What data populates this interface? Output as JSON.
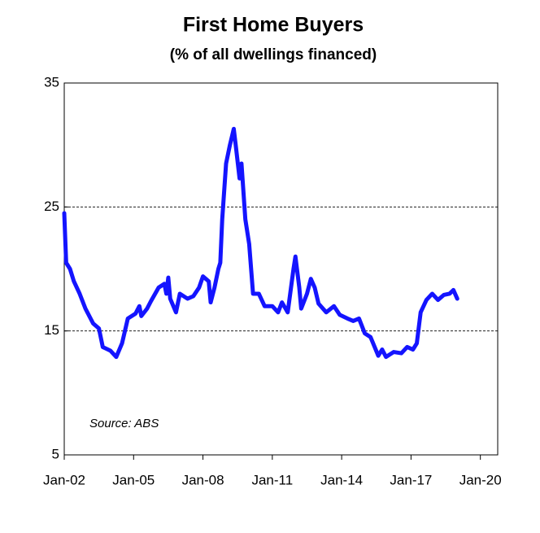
{
  "chart_data": {
    "type": "line",
    "title": "First Home Buyers",
    "subtitle": "(% of all dwellings financed)",
    "annotation": "Source: ABS",
    "xlim": [
      "2002-01",
      "2020-10"
    ],
    "xticks": [
      {
        "value": "2002-01",
        "label": "Jan-02"
      },
      {
        "value": "2005-01",
        "label": "Jan-05"
      },
      {
        "value": "2008-01",
        "label": "Jan-08"
      },
      {
        "value": "2011-01",
        "label": "Jan-11"
      },
      {
        "value": "2014-01",
        "label": "Jan-14"
      },
      {
        "value": "2017-01",
        "label": "Jan-17"
      },
      {
        "value": "2020-01",
        "label": "Jan-20"
      }
    ],
    "ylim": [
      5,
      35
    ],
    "yticks": [
      5,
      15,
      25,
      35
    ],
    "grid": true,
    "series": [
      {
        "name": "First Home Buyers",
        "color": "#1414ff",
        "x": [
          "2002-01",
          "2002-02",
          "2002-04",
          "2002-06",
          "2002-09",
          "2002-12",
          "2003-04",
          "2003-07",
          "2003-09",
          "2004-01",
          "2004-04",
          "2004-07",
          "2004-10",
          "2005-02",
          "2005-04",
          "2005-05",
          "2005-08",
          "2005-10",
          "2006-02",
          "2006-05",
          "2006-06",
          "2006-07",
          "2006-08",
          "2006-11",
          "2007-01",
          "2007-05",
          "2007-08",
          "2007-11",
          "2008-01",
          "2008-04",
          "2008-05",
          "2008-07",
          "2008-09",
          "2008-10",
          "2008-11",
          "2009-01",
          "2009-03",
          "2009-05",
          "2009-06",
          "2009-08",
          "2009-09",
          "2009-11",
          "2010-01",
          "2010-03",
          "2010-06",
          "2010-09",
          "2011-01",
          "2011-04",
          "2011-06",
          "2011-09",
          "2011-12",
          "2012-01",
          "2012-03",
          "2012-04",
          "2012-07",
          "2012-09",
          "2012-11",
          "2013-01",
          "2013-05",
          "2013-09",
          "2013-12",
          "2014-04",
          "2014-07",
          "2014-10",
          "2015-01",
          "2015-04",
          "2015-08",
          "2015-10",
          "2015-12",
          "2016-04",
          "2016-08",
          "2016-11",
          "2017-02",
          "2017-04",
          "2017-06",
          "2017-09",
          "2017-12",
          "2018-03",
          "2018-06",
          "2018-09",
          "2018-11",
          "2019-01"
        ],
        "values": [
          24.5,
          20.5,
          20.0,
          19.0,
          18.0,
          16.8,
          15.6,
          15.2,
          13.7,
          13.4,
          12.9,
          14.0,
          16.0,
          16.4,
          17.0,
          16.2,
          16.8,
          17.4,
          18.5,
          18.8,
          18.0,
          19.3,
          17.6,
          16.5,
          18.0,
          17.6,
          17.8,
          18.5,
          19.4,
          19.0,
          17.3,
          18.5,
          20.0,
          20.5,
          24.0,
          28.5,
          30.0,
          31.3,
          30.0,
          27.3,
          28.5,
          24.0,
          22.0,
          18.0,
          18.0,
          17.0,
          17.0,
          16.5,
          17.3,
          16.5,
          20.0,
          21.0,
          18.5,
          16.8,
          18.0,
          19.2,
          18.5,
          17.2,
          16.5,
          17.0,
          16.3,
          16.0,
          15.8,
          16.0,
          14.8,
          14.5,
          13.0,
          13.5,
          12.9,
          13.3,
          13.2,
          13.7,
          13.5,
          14.0,
          16.5,
          17.5,
          18.0,
          17.5,
          17.9,
          18.0,
          18.3,
          17.6
        ]
      }
    ]
  }
}
